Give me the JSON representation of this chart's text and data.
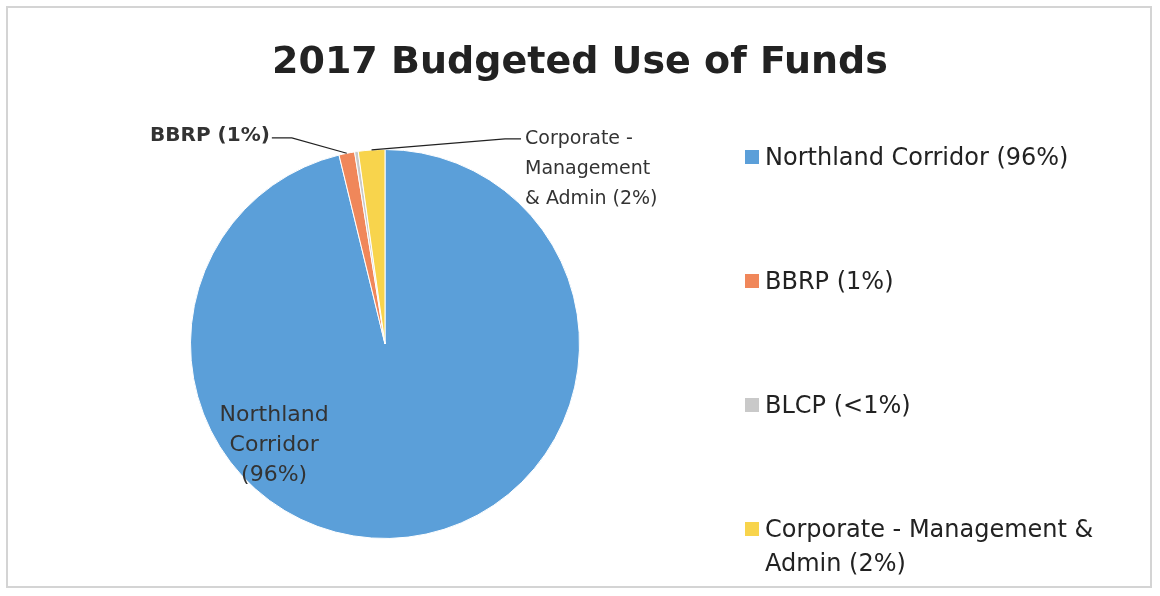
{
  "chart_data": {
    "type": "pie",
    "title": "2017 Budgeted Use of Funds",
    "categories": [
      "Northland Corridor (96%)",
      "BBRP (1%)",
      "BLCP (<1%)",
      "Corporate - Management & Admin (2%)"
    ],
    "values": [
      96.2,
      1.3,
      0.3,
      2.2
    ],
    "colors": [
      "#5b9fd9",
      "#f0875a",
      "#c9c9c9",
      "#f8d44c"
    ],
    "value_labels": [
      "Northland Corridor (96%)",
      "BBRP (1%)",
      null,
      "Corporate - Management & Admin (2%)"
    ],
    "legend": "right"
  }
}
